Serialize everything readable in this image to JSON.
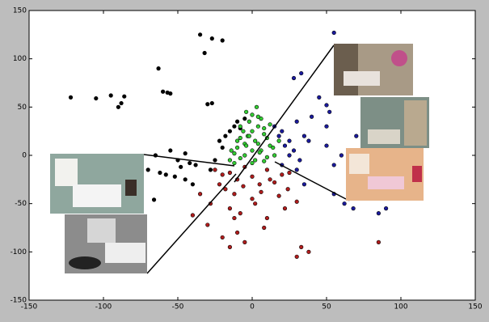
{
  "chart_data": {
    "type": "scatter",
    "xlim": [
      -150,
      150
    ],
    "ylim": [
      -150,
      150
    ],
    "xticks": [
      -150,
      -100,
      -50,
      0,
      50,
      100,
      150
    ],
    "yticks": [
      -150,
      -100,
      -50,
      0,
      50,
      100,
      150
    ],
    "series": [
      {
        "color": "#000000",
        "x": [
          -122,
          -105,
          -95,
          -90,
          -88,
          -86,
          -63,
          -60,
          -57,
          -55,
          -35,
          -27,
          -32,
          -20,
          -30,
          -27,
          -65,
          -55,
          -50,
          -45,
          -42,
          -38,
          -70,
          -62,
          -58,
          -52,
          -48,
          -66,
          -22,
          -18,
          -15,
          -12,
          -25,
          -20,
          -10,
          -8,
          -5,
          -28,
          -45,
          -40
        ],
        "values": [
          60,
          59,
          62,
          50,
          54,
          61,
          90,
          66,
          65,
          64,
          125,
          121,
          106,
          119,
          53,
          54,
          0,
          5,
          -5,
          2,
          -8,
          -10,
          -15,
          -18,
          -20,
          -22,
          -12,
          -46,
          15,
          20,
          25,
          30,
          -5,
          8,
          35,
          28,
          38,
          -15,
          -25,
          -30
        ]
      },
      {
        "color": "#b01c1c",
        "x": [
          -25,
          -20,
          -15,
          -10,
          -5,
          0,
          5,
          10,
          15,
          20,
          25,
          -22,
          -18,
          -12,
          -6,
          0,
          6,
          12,
          18,
          24,
          -28,
          -15,
          -8,
          2,
          10,
          22,
          30,
          -40,
          -30,
          -35,
          -20,
          -12,
          -5,
          -15,
          -10,
          8,
          30,
          33,
          38,
          85
        ],
        "values": [
          -15,
          -20,
          -18,
          -25,
          -12,
          -22,
          -30,
          -15,
          -28,
          -20,
          -18,
          -30,
          -35,
          -40,
          -32,
          -45,
          -38,
          -25,
          -42,
          -35,
          -50,
          -55,
          -60,
          -50,
          -65,
          -55,
          -48,
          -62,
          -72,
          -40,
          -85,
          -65,
          -90,
          -95,
          -80,
          -75,
          -105,
          -95,
          -100,
          -90
        ]
      },
      {
        "color": "#1a1a9c",
        "x": [
          15,
          18,
          20,
          22,
          25,
          28,
          30,
          32,
          35,
          20,
          25,
          30,
          38,
          28,
          33,
          40,
          45,
          50,
          52,
          55,
          60,
          65,
          70,
          55,
          62,
          68,
          85,
          90,
          100,
          35,
          50,
          55,
          50,
          75,
          70,
          65
        ],
        "values": [
          30,
          20,
          25,
          10,
          15,
          5,
          35,
          -5,
          20,
          -10,
          0,
          -15,
          15,
          80,
          85,
          40,
          60,
          52,
          45,
          127,
          0,
          5,
          -5,
          -40,
          -50,
          -55,
          -60,
          -55,
          -30,
          -30,
          10,
          -10,
          30,
          -20,
          20,
          -45
        ]
      },
      {
        "color": "#33cc33",
        "x": [
          -15,
          -12,
          -10,
          -8,
          -5,
          -3,
          0,
          2,
          4,
          6,
          8,
          10,
          12,
          15,
          -14,
          -10,
          -6,
          -2,
          2,
          6,
          10,
          14,
          -12,
          -8,
          -4,
          0,
          4,
          8,
          12,
          -8,
          -4,
          0,
          4,
          8,
          -5,
          0,
          5,
          -2,
          3,
          18
        ],
        "values": [
          -5,
          2,
          8,
          -3,
          12,
          20,
          -8,
          15,
          30,
          5,
          22,
          -2,
          10,
          0,
          5,
          15,
          25,
          35,
          -5,
          38,
          18,
          8,
          -8,
          30,
          45,
          25,
          40,
          28,
          32,
          18,
          10,
          5,
          12,
          -6,
          0,
          42,
          3,
          20,
          50,
          15
        ]
      }
    ]
  }
}
